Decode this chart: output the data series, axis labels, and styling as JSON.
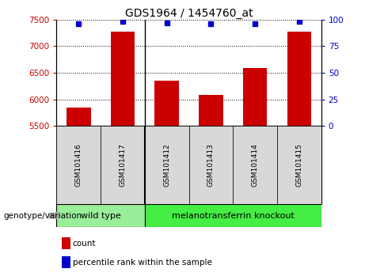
{
  "title": "GDS1964 / 1454760_at",
  "samples": [
    "GSM101416",
    "GSM101417",
    "GSM101412",
    "GSM101413",
    "GSM101414",
    "GSM101415"
  ],
  "counts": [
    5840,
    7280,
    6350,
    6080,
    6590,
    7280
  ],
  "percentile_ranks": [
    96,
    98,
    97,
    96,
    96,
    98
  ],
  "ylim_left": [
    5500,
    7500
  ],
  "ylim_right": [
    0,
    100
  ],
  "yticks_left": [
    5500,
    6000,
    6500,
    7000,
    7500
  ],
  "yticks_right": [
    0,
    25,
    50,
    75,
    100
  ],
  "bar_color": "#cc0000",
  "dot_color": "#0000cc",
  "groups": [
    {
      "label": "wild type",
      "n": 2,
      "color": "#99ee99"
    },
    {
      "label": "melanotransferrin knockout",
      "n": 4,
      "color": "#44ee44"
    }
  ],
  "group_separator_idx": 2,
  "left_tick_color": "#cc0000",
  "right_tick_color": "#0000cc",
  "title_fontsize": 10,
  "tick_fontsize": 7.5,
  "sample_label_fontsize": 6.5,
  "group_label_fontsize": 8,
  "legend_fontsize": 7.5,
  "genotype_label": "genotype/variation",
  "genotype_fontsize": 7.5
}
